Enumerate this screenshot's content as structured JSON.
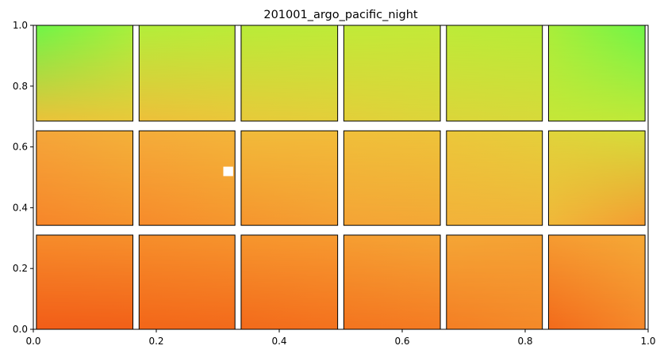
{
  "chart_data": {
    "type": "heatmap",
    "title": "201001_argo_pacific_night",
    "xlabel": "",
    "ylabel": "",
    "xlim": [
      0,
      1
    ],
    "ylim": [
      0,
      1
    ],
    "x_ticks": [
      "0.0",
      "0.2",
      "0.4",
      "0.6",
      "0.8",
      "1.0"
    ],
    "y_ticks": [
      "0.0",
      "0.2",
      "0.4",
      "0.6",
      "0.8",
      "1.0"
    ],
    "grid": false,
    "legend": "none",
    "panel_columns": 6,
    "panel_rows": 3,
    "panels": [
      {
        "row": 0,
        "col": 0,
        "x0": 0.005,
        "x1": 0.162,
        "y0": 0.685,
        "y1": 1.0,
        "colors": {
          "tl": "#6ef548",
          "tr": "#a6f03c",
          "bl": "#ecc23a",
          "br": "#e9c93a"
        }
      },
      {
        "row": 0,
        "col": 1,
        "x0": 0.172,
        "x1": 0.328,
        "y0": 0.685,
        "y1": 1.0,
        "colors": {
          "tl": "#b2ee3a",
          "tr": "#baec38",
          "bl": "#eec03a",
          "br": "#ebc73a"
        }
      },
      {
        "row": 0,
        "col": 2,
        "x0": 0.338,
        "x1": 0.495,
        "y0": 0.685,
        "y1": 1.0,
        "colors": {
          "tl": "#b8ec38",
          "tr": "#bdeb38",
          "bl": "#e8ca3a",
          "br": "#e4cf3a"
        }
      },
      {
        "row": 0,
        "col": 3,
        "x0": 0.505,
        "x1": 0.662,
        "y0": 0.685,
        "y1": 1.0,
        "colors": {
          "tl": "#c0ea38",
          "tr": "#c3e938",
          "bl": "#e4cf3a",
          "br": "#ddd63a"
        }
      },
      {
        "row": 0,
        "col": 4,
        "x0": 0.672,
        "x1": 0.828,
        "y0": 0.685,
        "y1": 1.0,
        "colors": {
          "tl": "#bceb38",
          "tr": "#b6ec38",
          "bl": "#dcd63a",
          "br": "#d8da3a"
        }
      },
      {
        "row": 0,
        "col": 5,
        "x0": 0.838,
        "x1": 0.995,
        "y0": 0.685,
        "y1": 1.0,
        "colors": {
          "tl": "#a8ee3a",
          "tr": "#6ef548",
          "bl": "#c6e738",
          "br": "#c0ea38"
        }
      },
      {
        "row": 1,
        "col": 0,
        "x0": 0.005,
        "x1": 0.162,
        "y0": 0.342,
        "y1": 0.653,
        "colors": {
          "tl": "#f4a63a",
          "tr": "#f3b13a",
          "bl": "#f7862a",
          "br": "#f6922c"
        }
      },
      {
        "row": 1,
        "col": 1,
        "x0": 0.172,
        "x1": 0.328,
        "y0": 0.342,
        "y1": 0.653,
        "colors": {
          "tl": "#f4ac3a",
          "tr": "#f3b53a",
          "bl": "#f78b2b",
          "br": "#f6962e"
        }
      },
      {
        "row": 1,
        "col": 2,
        "x0": 0.338,
        "x1": 0.495,
        "y0": 0.342,
        "y1": 0.653,
        "colors": {
          "tl": "#f1ba3a",
          "tr": "#f1bc3a",
          "bl": "#f6952e",
          "br": "#f59f33"
        }
      },
      {
        "row": 1,
        "col": 3,
        "x0": 0.505,
        "x1": 0.662,
        "y0": 0.342,
        "y1": 0.653,
        "colors": {
          "tl": "#efbf3a",
          "tr": "#edc33a",
          "bl": "#f5a436",
          "br": "#f4a836"
        }
      },
      {
        "row": 1,
        "col": 4,
        "x0": 0.672,
        "x1": 0.828,
        "y0": 0.342,
        "y1": 0.653,
        "colors": {
          "tl": "#ebc73a",
          "tr": "#e4cf3a",
          "bl": "#f3b23a",
          "br": "#f2b43a"
        }
      },
      {
        "row": 1,
        "col": 5,
        "x0": 0.838,
        "x1": 0.995,
        "y0": 0.342,
        "y1": 0.653,
        "colors": {
          "tl": "#e0d33a",
          "tr": "#d4de3a",
          "bl": "#f1b83a",
          "br": "#f59c32"
        }
      },
      {
        "row": 2,
        "col": 0,
        "x0": 0.005,
        "x1": 0.162,
        "y0": 0.0,
        "y1": 0.31,
        "colors": {
          "tl": "#f68c2b",
          "tr": "#f6902c",
          "bl": "#f25d18",
          "br": "#f26018"
        }
      },
      {
        "row": 2,
        "col": 1,
        "x0": 0.172,
        "x1": 0.328,
        "y0": 0.0,
        "y1": 0.31,
        "colors": {
          "tl": "#f68e2b",
          "tr": "#f6942d",
          "bl": "#f36619",
          "br": "#f36a1b"
        }
      },
      {
        "row": 2,
        "col": 2,
        "x0": 0.338,
        "x1": 0.495,
        "y0": 0.0,
        "y1": 0.31,
        "colors": {
          "tl": "#f6962e",
          "tr": "#f69a30",
          "bl": "#f36a1b",
          "br": "#f4721e"
        }
      },
      {
        "row": 2,
        "col": 3,
        "x0": 0.505,
        "x1": 0.662,
        "y0": 0.0,
        "y1": 0.31,
        "colors": {
          "tl": "#f59e32",
          "tr": "#f4a435",
          "bl": "#f4741f",
          "br": "#f57c23"
        }
      },
      {
        "row": 2,
        "col": 4,
        "x0": 0.672,
        "x1": 0.828,
        "y0": 0.0,
        "y1": 0.31,
        "colors": {
          "tl": "#f4a636",
          "tr": "#f4a234",
          "bl": "#f57e24",
          "br": "#f58a29"
        }
      },
      {
        "row": 2,
        "col": 5,
        "x0": 0.838,
        "x1": 0.995,
        "y0": 0.0,
        "y1": 0.31,
        "colors": {
          "tl": "#f59c32",
          "tr": "#f4a836",
          "bl": "#f36a1b",
          "br": "#f6882a"
        }
      }
    ],
    "missing_cells": [
      {
        "x0": 0.309,
        "x1": 0.325,
        "y0": 0.504,
        "y1": 0.535
      }
    ]
  }
}
